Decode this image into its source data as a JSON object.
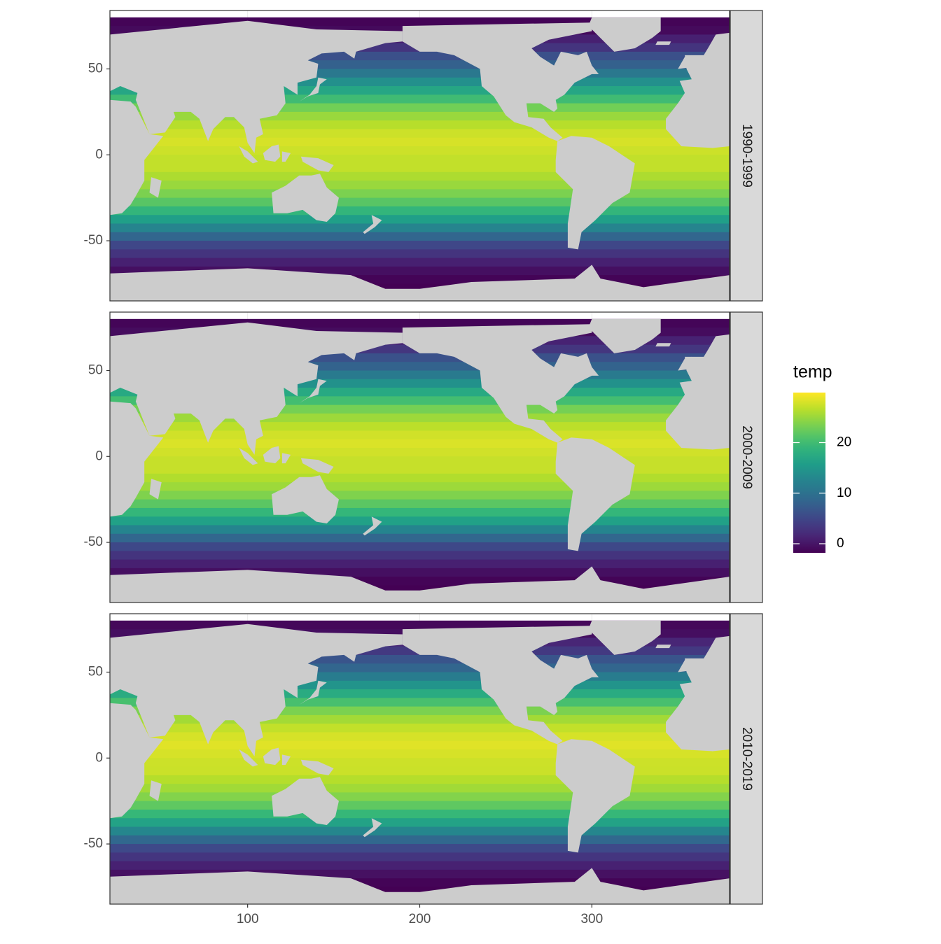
{
  "chart_data": {
    "type": "raster",
    "legend_title": "temp",
    "xlim": [
      20,
      380
    ],
    "ylim": [
      -85,
      84
    ],
    "xticks": [
      100,
      200,
      300
    ],
    "yticks": [
      -50,
      0,
      50
    ],
    "colorlim": [
      -1.8,
      29.9
    ],
    "colorticks": [
      0,
      10,
      20
    ],
    "land_color": "#cccccc",
    "grid": true,
    "facets": [
      {
        "label": "1990-1999",
        "y": [
          77.5,
          72.5,
          67.5,
          62.5,
          57.5,
          52.5,
          47.5,
          42.5,
          37.5,
          32.5,
          27.5,
          22.5,
          17.5,
          12.5,
          7.5,
          2.5,
          -2.5,
          -7.5,
          -12.5,
          -17.5,
          -22.5,
          -27.5,
          -32.5,
          -37.5,
          -42.5,
          -47.5,
          -52.5,
          -57.5,
          -62.5,
          -67.5,
          -72.5,
          -77.5
        ],
        "values": [
          -1.5,
          -1,
          1,
          3,
          6,
          8,
          11,
          14,
          17,
          20,
          23,
          25,
          26.5,
          27.5,
          28,
          27.5,
          27,
          27,
          26,
          25,
          23.5,
          21.5,
          19,
          16,
          12.5,
          8.5,
          5,
          3,
          1,
          -0.5,
          -1.5,
          -1.8
        ]
      },
      {
        "label": "2000-2009",
        "y": [
          77.5,
          72.5,
          67.5,
          62.5,
          57.5,
          52.5,
          47.5,
          42.5,
          37.5,
          32.5,
          27.5,
          22.5,
          17.5,
          12.5,
          7.5,
          2.5,
          -2.5,
          -7.5,
          -12.5,
          -17.5,
          -22.5,
          -27.5,
          -32.5,
          -37.5,
          -42.5,
          -47.5,
          -52.5,
          -57.5,
          -62.5,
          -67.5,
          -72.5,
          -77.5
        ],
        "values": [
          -1.4,
          -0.8,
          1.2,
          3.2,
          6.2,
          8.2,
          11.2,
          14.2,
          17.3,
          20.2,
          23.2,
          25.2,
          26.7,
          27.7,
          28.2,
          27.7,
          27.2,
          27.2,
          26.2,
          25.2,
          23.7,
          21.7,
          19.2,
          16.2,
          12.6,
          8.6,
          5.1,
          3,
          1,
          -0.5,
          -1.5,
          -1.8
        ]
      },
      {
        "label": "2010-2019",
        "y": [
          77.5,
          72.5,
          67.5,
          62.5,
          57.5,
          52.5,
          47.5,
          42.5,
          37.5,
          32.5,
          27.5,
          22.5,
          17.5,
          12.5,
          7.5,
          2.5,
          -2.5,
          -7.5,
          -12.5,
          -17.5,
          -22.5,
          -27.5,
          -32.5,
          -37.5,
          -42.5,
          -47.5,
          -52.5,
          -57.5,
          -62.5,
          -67.5,
          -72.5,
          -77.5
        ],
        "values": [
          -1.2,
          -0.6,
          1.5,
          3.5,
          6.5,
          8.5,
          11.5,
          14.5,
          17.6,
          20.5,
          23.5,
          25.5,
          27,
          28,
          28.5,
          28,
          27.5,
          27.4,
          26.4,
          25.4,
          23.9,
          21.9,
          19.4,
          16.4,
          12.8,
          8.8,
          5.2,
          3.1,
          1.1,
          -0.4,
          -1.5,
          -1.8
        ]
      }
    ]
  }
}
